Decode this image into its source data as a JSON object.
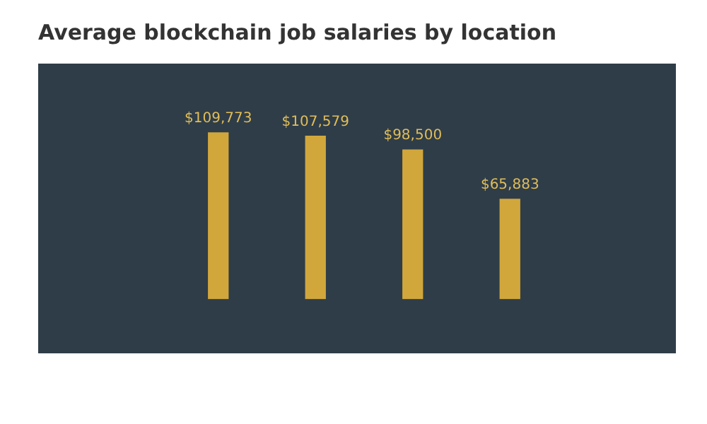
{
  "chart_data": {
    "type": "bar",
    "title": "Average blockchain job salaries by location",
    "categories": [
      null,
      null,
      null,
      null
    ],
    "values": [
      109773,
      107579,
      98500,
      65883
    ],
    "value_labels": [
      "$109,773",
      "$107,579",
      "$98,500",
      "$65,883"
    ],
    "color": "#d1a73c",
    "grid": false,
    "legend": false
  }
}
